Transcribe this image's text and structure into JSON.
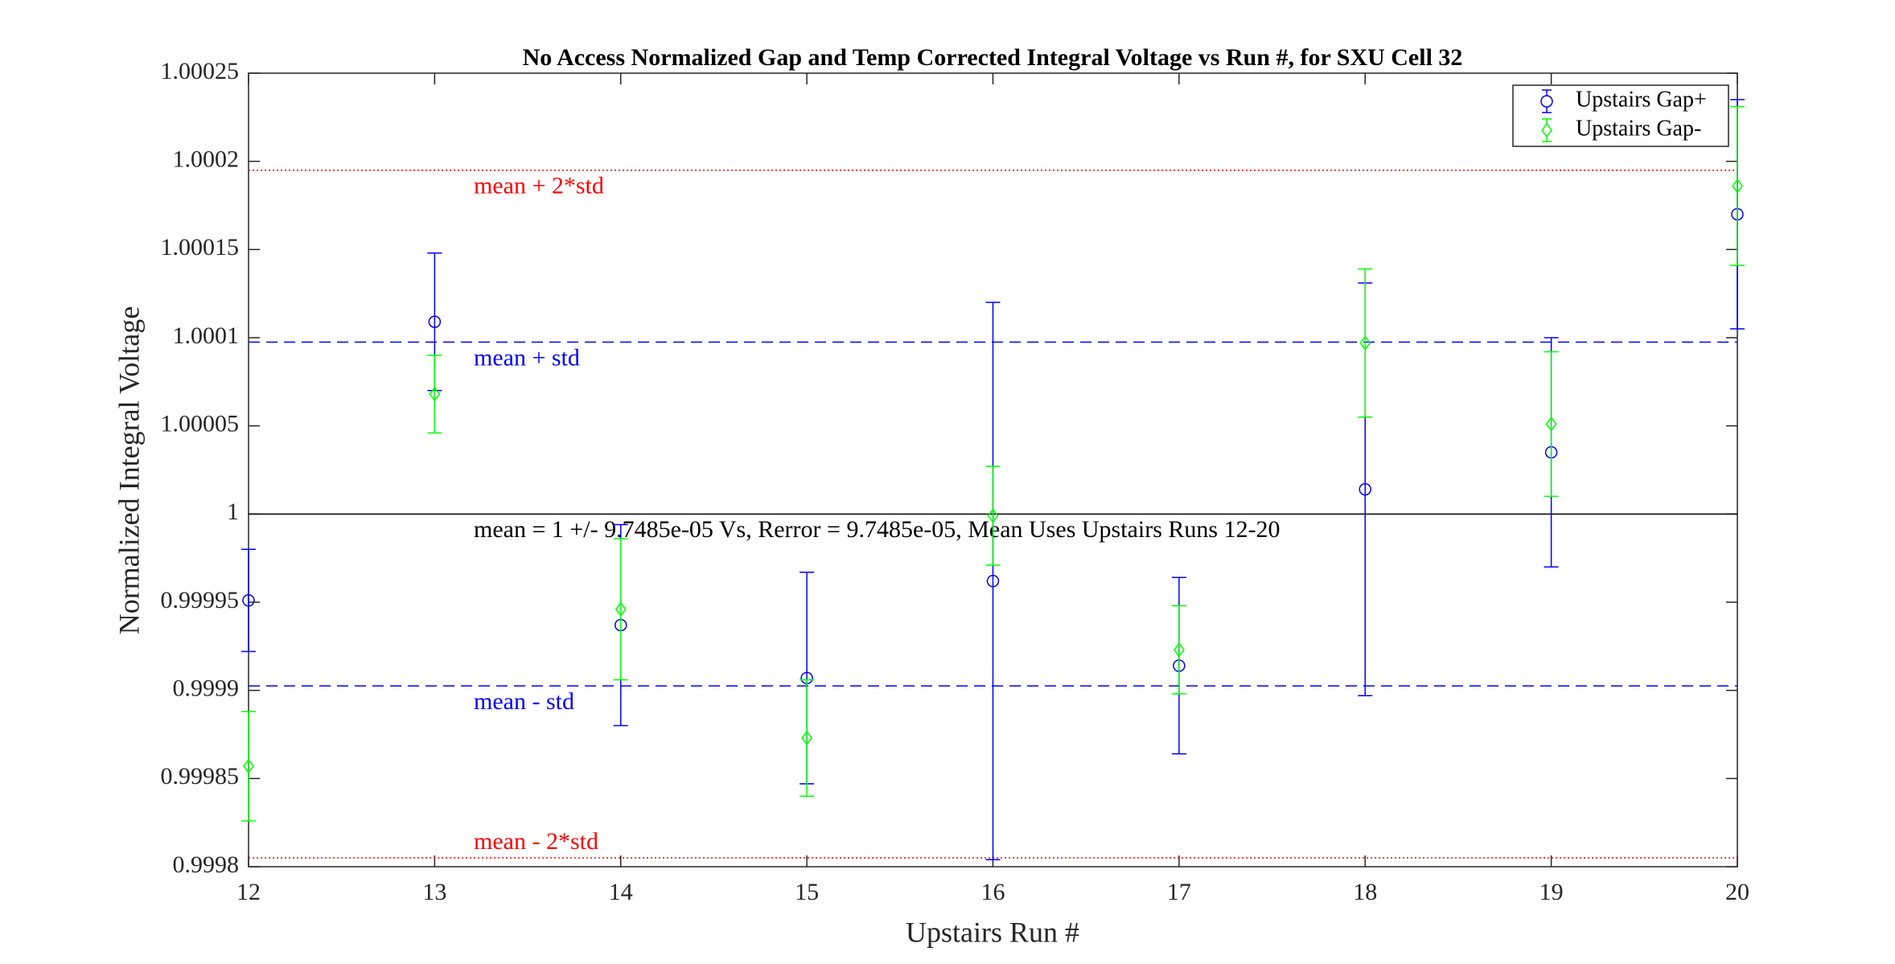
{
  "chart_data": {
    "type": "errorbar",
    "title": "No Access Normalized Gap and Temp Corrected Integral Voltage vs Run #, for SXU Cell 32",
    "xlabel": "Upstairs Run #",
    "ylabel": "Normalized Integral Voltage",
    "x": [
      12,
      13,
      14,
      15,
      16,
      17,
      18,
      19,
      20
    ],
    "series": [
      {
        "name": "Upstairs Gap+",
        "color": "#0000ff",
        "marker": "circle",
        "values": [
          0.999951,
          1.000109,
          0.999937,
          0.999907,
          0.999962,
          0.999914,
          1.000014,
          1.000035,
          1.00017
        ],
        "errors": [
          2.9e-05,
          3.9e-05,
          5.7e-05,
          6e-05,
          0.000158,
          5e-05,
          0.000117,
          6.5e-05,
          6.5e-05
        ]
      },
      {
        "name": "Upstairs Gap-",
        "color": "#00ff00",
        "marker": "diamond",
        "values": [
          0.999857,
          1.000068,
          0.999946,
          0.999873,
          0.999999,
          0.999923,
          1.000097,
          1.000051,
          1.000186
        ],
        "errors": [
          3.1e-05,
          2.2e-05,
          4e-05,
          3.3e-05,
          2.8e-05,
          2.5e-05,
          4.2e-05,
          4.1e-05,
          4.5e-05
        ]
      }
    ],
    "reference_lines": [
      {
        "label": "mean + 2*std",
        "value": 1.00019497,
        "color": "#ff0000",
        "style": "dotted"
      },
      {
        "label": "mean + std",
        "value": 1.000097485,
        "color": "#0000ff",
        "style": "dashed"
      },
      {
        "label": "mean = 1 +/- 9.7485e-05 Vs, Rerror = 9.7485e-05, Mean Uses Upstairs Runs 12-20",
        "value": 1,
        "color": "#000000",
        "style": "solid"
      },
      {
        "label": "mean - std",
        "value": 0.999902515,
        "color": "#0000ff",
        "style": "dashed"
      },
      {
        "label": "mean - 2*std",
        "value": 0.99980503,
        "color": "#ff0000",
        "style": "dotted"
      }
    ],
    "xlim": [
      12,
      20
    ],
    "ylim": [
      0.9998,
      1.00025
    ],
    "xticks": [
      12,
      13,
      14,
      15,
      16,
      17,
      18,
      19,
      20
    ],
    "yticks": [
      0.9998,
      0.99985,
      0.9999,
      0.99995,
      1,
      1.00005,
      1.0001,
      1.00015,
      1.0002,
      1.00025
    ],
    "legend": "upper right"
  }
}
